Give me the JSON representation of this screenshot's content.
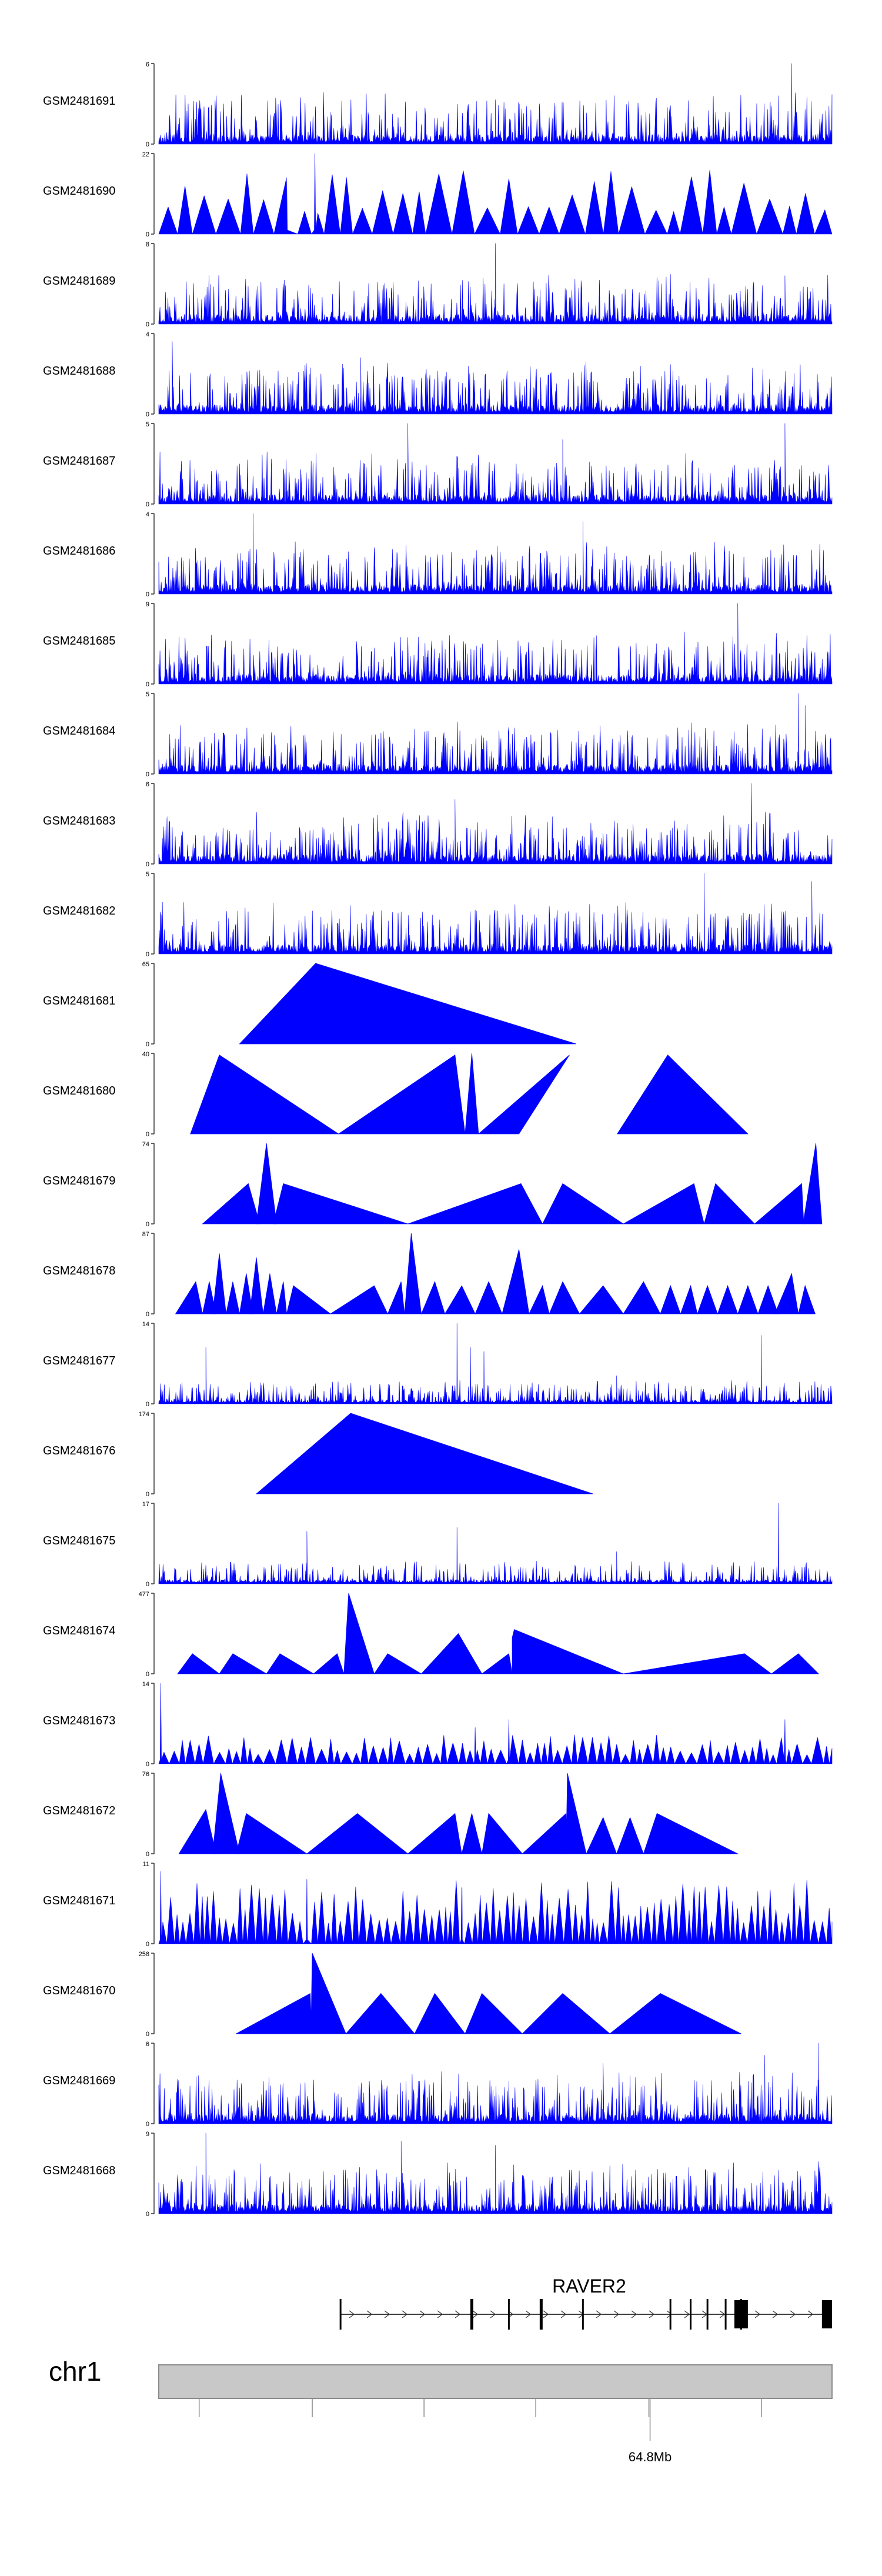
{
  "chart_data": {
    "type": "area",
    "description_source": "genome coverage tracks",
    "color": "#0000ff",
    "tracks": [
      {
        "name": "GSM2481691",
        "ymax": 6,
        "pattern": "dense",
        "seed": 11,
        "peaks": [
          [
            0.94,
            1.0
          ],
          [
            0.92,
            0.6
          ],
          [
            0.5,
            0.55
          ]
        ]
      },
      {
        "name": "GSM2481690",
        "ymax": 22,
        "pattern": "sparse",
        "seed": 12,
        "spacing": 0.028,
        "peaks": [
          [
            0.232,
            1.0
          ],
          [
            0.19,
            0.7
          ]
        ]
      },
      {
        "name": "GSM2481689",
        "ymax": 8,
        "pattern": "dense",
        "seed": 13,
        "peaks": [
          [
            0.5,
            1.0
          ],
          [
            0.93,
            0.6
          ]
        ]
      },
      {
        "name": "GSM2481688",
        "ymax": 4,
        "pattern": "dense",
        "seed": 14,
        "peaks": [
          [
            0.02,
            0.9
          ],
          [
            0.3,
            0.7
          ]
        ]
      },
      {
        "name": "GSM2481687",
        "ymax": 5,
        "pattern": "dense",
        "seed": 15,
        "peaks": [
          [
            0.37,
            1.0
          ],
          [
            0.93,
            1.0
          ],
          [
            0.6,
            0.8
          ]
        ]
      },
      {
        "name": "GSM2481686",
        "ymax": 4,
        "pattern": "dense",
        "seed": 16,
        "peaks": [
          [
            0.14,
            1.0
          ],
          [
            0.63,
            0.9
          ]
        ]
      },
      {
        "name": "GSM2481685",
        "ymax": 9,
        "pattern": "dense",
        "seed": 17,
        "peaks": [
          [
            0.86,
            1.0
          ],
          [
            0.65,
            0.6
          ]
        ]
      },
      {
        "name": "GSM2481684",
        "ymax": 5,
        "pattern": "dense",
        "seed": 18,
        "peaks": [
          [
            0.95,
            1.0
          ],
          [
            0.96,
            0.85
          ]
        ]
      },
      {
        "name": "GSM2481683",
        "ymax": 6,
        "pattern": "dense",
        "seed": 19,
        "peaks": [
          [
            0.88,
            1.0
          ],
          [
            0.44,
            0.8
          ]
        ]
      },
      {
        "name": "GSM2481682",
        "ymax": 5,
        "pattern": "dense",
        "seed": 20,
        "peaks": [
          [
            0.81,
            1.0
          ],
          [
            0.97,
            0.9
          ]
        ]
      },
      {
        "name": "GSM2481681",
        "ymax": 65,
        "pattern": "triangles",
        "segments": [
          [
            0.12,
            0.233,
            0.62,
            1.0,
            0.0,
            0.0
          ]
        ]
      },
      {
        "name": "GSM2481680",
        "ymax": 40,
        "pattern": "triangles",
        "segments": [
          [
            0.047,
            0.09,
            0.267,
            0.98,
            0.0,
            0.0
          ],
          [
            0.267,
            0.44,
            0.455,
            0.98,
            0.0,
            0.0
          ],
          [
            0.455,
            0.465,
            0.475,
            1.0,
            0.0,
            0.0
          ],
          [
            0.475,
            0.61,
            0.535,
            0.98,
            0.0,
            0.0
          ],
          [
            0.681,
            0.756,
            0.875,
            0.98,
            0.0,
            0.0
          ]
        ]
      },
      {
        "name": "GSM2481679",
        "ymax": 74,
        "pattern": "triangles",
        "segments": [
          [
            0.065,
            0.133,
            0.15,
            0.5,
            0.0,
            0.0
          ],
          [
            0.145,
            0.16,
            0.175,
            1.0,
            0.0,
            0.0
          ],
          [
            0.17,
            0.185,
            0.37,
            0.5,
            0.0,
            0.0
          ],
          [
            0.37,
            0.538,
            0.57,
            0.5,
            0.0,
            0.0
          ],
          [
            0.57,
            0.6,
            0.69,
            0.5,
            0.0,
            0.0
          ],
          [
            0.69,
            0.795,
            0.81,
            0.5,
            0.0,
            0.0
          ],
          [
            0.81,
            0.827,
            0.885,
            0.5,
            0.0,
            0.0
          ],
          [
            0.885,
            0.955,
            0.958,
            0.5,
            0.0,
            0.0
          ],
          [
            0.957,
            0.976,
            0.985,
            1.0,
            0.0,
            0.0
          ]
        ]
      },
      {
        "name": "GSM2481678",
        "ymax": 87,
        "pattern": "triangles",
        "segments": [
          [
            0.025,
            0.055,
            0.065,
            0.4,
            0.0,
            0.0
          ],
          [
            0.065,
            0.075,
            0.085,
            0.4,
            0.0,
            0.0
          ],
          [
            0.08,
            0.09,
            0.1,
            0.75,
            0.0,
            0.0
          ],
          [
            0.1,
            0.11,
            0.12,
            0.4,
            0.0,
            0.0
          ],
          [
            0.12,
            0.13,
            0.14,
            0.5,
            0.0,
            0.0
          ],
          [
            0.135,
            0.145,
            0.155,
            0.7,
            0.0,
            0.0
          ],
          [
            0.155,
            0.165,
            0.175,
            0.5,
            0.0,
            0.0
          ],
          [
            0.175,
            0.185,
            0.19,
            0.4,
            0.0,
            0.0
          ],
          [
            0.19,
            0.2,
            0.255,
            0.35,
            0.0,
            0.0
          ],
          [
            0.255,
            0.32,
            0.34,
            0.35,
            0.0,
            0.0
          ],
          [
            0.34,
            0.36,
            0.365,
            0.4,
            0.0,
            0.0
          ],
          [
            0.365,
            0.375,
            0.39,
            1.0,
            0.0,
            0.0
          ],
          [
            0.39,
            0.41,
            0.425,
            0.4,
            0.0,
            0.0
          ],
          [
            0.425,
            0.45,
            0.47,
            0.35,
            0.0,
            0.0
          ],
          [
            0.47,
            0.49,
            0.51,
            0.4,
            0.0,
            0.0
          ],
          [
            0.51,
            0.535,
            0.55,
            0.8,
            0.0,
            0.0
          ],
          [
            0.55,
            0.57,
            0.58,
            0.35,
            0.0,
            0.0
          ],
          [
            0.58,
            0.6,
            0.625,
            0.4,
            0.0,
            0.0
          ],
          [
            0.625,
            0.66,
            0.69,
            0.35,
            0.0,
            0.0
          ],
          [
            0.69,
            0.72,
            0.745,
            0.4,
            0.0,
            0.0
          ],
          [
            0.745,
            0.76,
            0.775,
            0.35,
            0.0,
            0.0
          ],
          [
            0.775,
            0.79,
            0.8,
            0.35,
            0.0,
            0.0
          ],
          [
            0.8,
            0.815,
            0.83,
            0.35,
            0.0,
            0.0
          ],
          [
            0.83,
            0.845,
            0.86,
            0.35,
            0.0,
            0.0
          ],
          [
            0.86,
            0.875,
            0.89,
            0.35,
            0.0,
            0.0
          ],
          [
            0.89,
            0.905,
            0.92,
            0.35,
            0.0,
            0.0
          ],
          [
            0.915,
            0.94,
            0.95,
            0.5,
            0.0,
            0.0
          ],
          [
            0.95,
            0.96,
            0.975,
            0.35,
            0.0,
            0.0
          ]
        ]
      },
      {
        "name": "GSM2481677",
        "ymax": 14,
        "pattern": "dense",
        "seed": 21,
        "low": true,
        "peaks": [
          [
            0.443,
            1.0
          ],
          [
            0.895,
            0.85
          ],
          [
            0.483,
            0.65
          ],
          [
            0.07,
            0.7
          ],
          [
            0.463,
            0.7
          ],
          [
            0.68,
            0.35
          ]
        ]
      },
      {
        "name": "GSM2481676",
        "ymax": 174,
        "pattern": "triangles",
        "segments": [
          [
            0.145,
            0.285,
            0.645,
            1.0,
            0.0,
            0.0
          ]
        ]
      },
      {
        "name": "GSM2481675",
        "ymax": 17,
        "pattern": "dense",
        "seed": 22,
        "low": true,
        "peaks": [
          [
            0.92,
            1.0
          ],
          [
            0.443,
            0.7
          ],
          [
            0.22,
            0.65
          ],
          [
            0.68,
            0.4
          ]
        ]
      },
      {
        "name": "GSM2481674",
        "ymax": 477,
        "pattern": "triangles",
        "segments": [
          [
            0.028,
            0.05,
            0.09,
            0.25,
            0.0,
            0.0
          ],
          [
            0.09,
            0.11,
            0.16,
            0.25,
            0.0,
            0.0
          ],
          [
            0.16,
            0.18,
            0.23,
            0.25,
            0.0,
            0.0
          ],
          [
            0.23,
            0.265,
            0.275,
            0.25,
            0.0,
            0.0
          ],
          [
            0.275,
            0.282,
            0.32,
            1.0,
            0.0,
            0.0
          ],
          [
            0.32,
            0.34,
            0.39,
            0.25,
            0.0,
            0.0
          ],
          [
            0.39,
            0.445,
            0.48,
            0.5,
            0.0,
            0.0
          ],
          [
            0.48,
            0.52,
            0.525,
            0.25,
            0.0,
            0.0
          ],
          [
            0.525,
            0.528,
            0.69,
            0.55,
            0.45,
            0.0
          ],
          [
            0.69,
            0.87,
            0.91,
            0.25,
            0.0,
            0.0
          ],
          [
            0.91,
            0.95,
            0.98,
            0.25,
            0.0,
            0.0
          ]
        ]
      },
      {
        "name": "GSM2481673",
        "ymax": 14,
        "pattern": "sparse",
        "seed": 23,
        "spacing": 0.013,
        "low": true,
        "peaks": [
          [
            0.003,
            1.0
          ],
          [
            0.93,
            0.55
          ],
          [
            0.52,
            0.55
          ],
          [
            0.47,
            0.45
          ]
        ]
      },
      {
        "name": "GSM2481672",
        "ymax": 76,
        "pattern": "triangles",
        "segments": [
          [
            0.03,
            0.07,
            0.085,
            0.55,
            0.0,
            0.0
          ],
          [
            0.08,
            0.092,
            0.12,
            1.0,
            0.0,
            0.0
          ],
          [
            0.115,
            0.13,
            0.22,
            0.5,
            0.0,
            0.0
          ],
          [
            0.22,
            0.295,
            0.37,
            0.5,
            0.0,
            0.0
          ],
          [
            0.37,
            0.44,
            0.45,
            0.5,
            0.0,
            0.0
          ],
          [
            0.45,
            0.465,
            0.48,
            0.5,
            0.0,
            0.0
          ],
          [
            0.48,
            0.49,
            0.54,
            0.5,
            0.0,
            0.0
          ],
          [
            0.54,
            0.605,
            0.607,
            0.5,
            0.0,
            0.0
          ],
          [
            0.605,
            0.607,
            0.635,
            1.0,
            0.0,
            0.0
          ],
          [
            0.635,
            0.66,
            0.68,
            0.45,
            0.0,
            0.0
          ],
          [
            0.68,
            0.7,
            0.72,
            0.45,
            0.0,
            0.0
          ],
          [
            0.72,
            0.74,
            0.86,
            0.5,
            0.0,
            0.0
          ]
        ]
      },
      {
        "name": "GSM2481671",
        "ymax": 11,
        "pattern": "sparse",
        "seed": 24,
        "spacing": 0.01,
        "peaks": [
          [
            0.003,
            0.9
          ],
          [
            0.22,
            0.8
          ],
          [
            0.45,
            0.7
          ]
        ]
      },
      {
        "name": "GSM2481670",
        "ymax": 258,
        "pattern": "triangles",
        "segments": [
          [
            0.115,
            0.225,
            0.227,
            0.5,
            0.0,
            0.0
          ],
          [
            0.226,
            0.228,
            0.278,
            1.0,
            0.0,
            0.0
          ],
          [
            0.278,
            0.33,
            0.38,
            0.5,
            0.0,
            0.0
          ],
          [
            0.38,
            0.41,
            0.455,
            0.5,
            0.0,
            0.0
          ],
          [
            0.455,
            0.48,
            0.54,
            0.5,
            0.0,
            0.0
          ],
          [
            0.54,
            0.6,
            0.67,
            0.5,
            0.0,
            0.0
          ],
          [
            0.67,
            0.745,
            0.865,
            0.5,
            0.0,
            0.0
          ]
        ]
      },
      {
        "name": "GSM2481669",
        "ymax": 6,
        "pattern": "dense",
        "seed": 25,
        "peaks": [
          [
            0.66,
            0.75
          ],
          [
            0.98,
            1.0
          ],
          [
            0.9,
            0.85
          ]
        ]
      },
      {
        "name": "GSM2481668",
        "ymax": 9,
        "pattern": "dense",
        "seed": 26,
        "peaks": [
          [
            0.07,
            1.0
          ],
          [
            0.36,
            0.9
          ],
          [
            0.5,
            0.85
          ]
        ]
      }
    ],
    "gene": {
      "name": "RAVER2",
      "strand": "+",
      "exons": [
        0.27,
        0.465,
        0.52,
        0.568,
        0.63,
        0.76,
        0.79,
        0.815,
        0.842,
        0.865
      ],
      "thick_blocks": [
        [
          0.855,
          0.875
        ],
        [
          0.985,
          1.0
        ]
      ]
    },
    "chromosome": {
      "label": "chr1",
      "ticks": [
        0.06,
        0.228,
        0.394,
        0.56,
        0.728,
        0.895
      ],
      "labeled_tick": {
        "position": 0.728,
        "label": "64.8Mb"
      }
    }
  }
}
